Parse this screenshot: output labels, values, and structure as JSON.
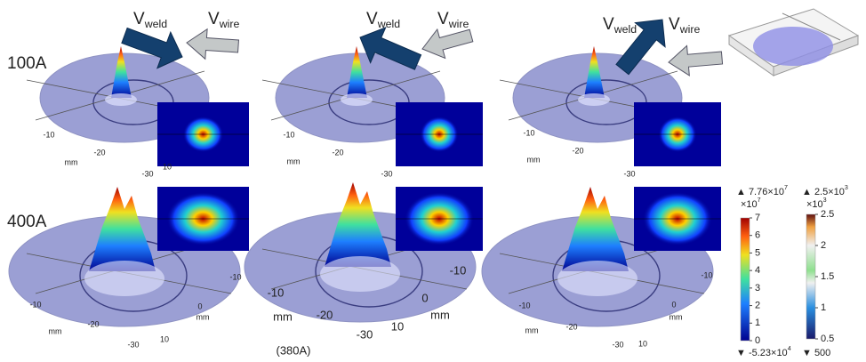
{
  "row_labels": [
    "100A",
    "400A"
  ],
  "panels": [
    {
      "velocity": {
        "weld": {
          "symbol": "V",
          "subscript": "weld"
        },
        "wire": {
          "symbol": "V",
          "subscript": "wire"
        }
      },
      "axis_labels": [
        "-10",
        "mm",
        "-20",
        "-30",
        "10"
      ]
    },
    {
      "velocity": {
        "weld": {
          "symbol": "V",
          "subscript": "weld"
        },
        "wire": {
          "symbol": "V",
          "subscript": "wire"
        }
      },
      "axis_labels": [
        "-10",
        "mm",
        "-20",
        "-30"
      ]
    },
    {
      "velocity": {
        "weld": {
          "symbol": "V",
          "subscript": "weld"
        },
        "wire": {
          "symbol": "V",
          "subscript": "wire"
        }
      },
      "axis_labels": [
        "-10",
        "mm",
        "-20",
        "-30"
      ]
    },
    {
      "axis_labels": [
        "-10",
        "0",
        "mm",
        "-10",
        "mm",
        "-20",
        "-30",
        "10"
      ]
    },
    {
      "axis_labels": [
        "-10",
        "0",
        "mm",
        "-10",
        "mm",
        "-20",
        "-30",
        "10"
      ],
      "note": "(380A)"
    },
    {
      "axis_labels": [
        "-10",
        "0",
        "mm",
        "-10",
        "mm",
        "-20",
        "-30",
        "10"
      ]
    }
  ],
  "colorbars": [
    {
      "max": "▲ 7.76×10",
      "max_exp": "7",
      "multiplier": "×10",
      "multiplier_exp": "7",
      "ticks": [
        0,
        1,
        2,
        3,
        4,
        5,
        6,
        7
      ],
      "min": "▼ -5.23×10",
      "min_exp": "4"
    },
    {
      "max": "▲ 2.5×10",
      "max_exp": "3",
      "multiplier": "×10",
      "multiplier_exp": "3",
      "ticks": [
        0.5,
        1,
        1.5,
        2,
        2.5
      ],
      "min": "▼ 500"
    }
  ]
}
